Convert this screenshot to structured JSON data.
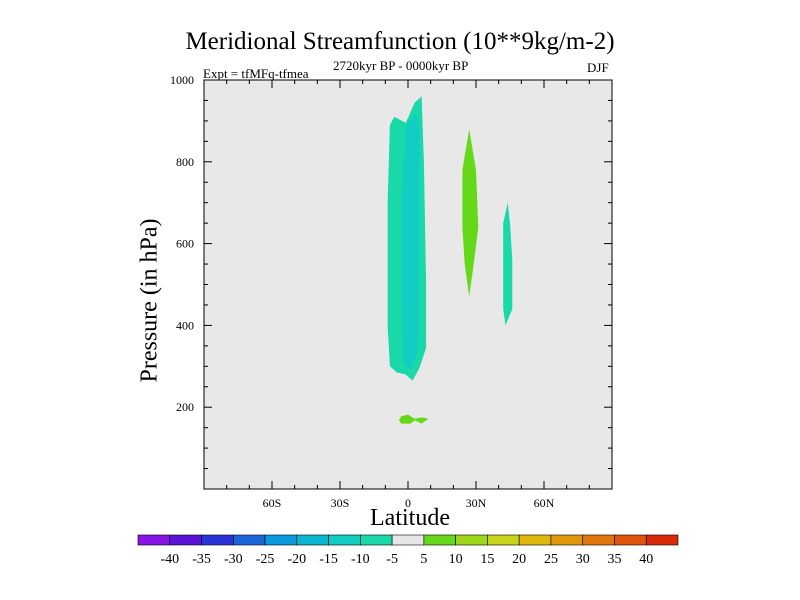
{
  "chart_data": {
    "type": "contour",
    "title": "Meridional Streamfunction (10**9kg/m-2)",
    "subtitle_left": "Expt = tfMFq-tfmea",
    "subtitle_center": "2720kyr BP - 0000kyr BP",
    "subtitle_right": "DJF",
    "xlabel": "Latitude",
    "ylabel": "Pressure (in hPa)",
    "xlim": [
      -90,
      90
    ],
    "ylim": [
      1000,
      0
    ],
    "x_ticks": [
      {
        "value": -60,
        "label": "60S"
      },
      {
        "value": -30,
        "label": "30S"
      },
      {
        "value": 0,
        "label": "0"
      },
      {
        "value": 30,
        "label": "30N"
      },
      {
        "value": 60,
        "label": "60N"
      }
    ],
    "y_ticks": [
      {
        "value": 200,
        "label": "200"
      },
      {
        "value": 400,
        "label": "400"
      },
      {
        "value": 600,
        "label": "600"
      },
      {
        "value": 800,
        "label": "800"
      },
      {
        "value": 1000,
        "label": "1000"
      }
    ],
    "colorbar": {
      "levels": [
        -40,
        -35,
        -30,
        -25,
        -20,
        -15,
        -10,
        -5,
        5,
        10,
        15,
        20,
        25,
        30,
        35,
        40
      ],
      "level_labels": [
        "-40",
        "-35",
        "-30",
        "-25",
        "-20",
        "-15",
        "-10",
        "-5",
        "5",
        "10",
        "15",
        "20",
        "25",
        "30",
        "35",
        "40"
      ],
      "colors": [
        "#8a14e6",
        "#5a14d8",
        "#2b33d6",
        "#1a66d9",
        "#0a99e0",
        "#0ab5d0",
        "#10cfc2",
        "#1ad9a8",
        "#e6e6e6",
        "#66d81a",
        "#9ed61a",
        "#c8d41a",
        "#e0b80a",
        "#e0970a",
        "#e0760a",
        "#e0560a",
        "#d92a0a"
      ]
    },
    "regions": [
      {
        "name": "streamfunction-region-negative-outer",
        "band": "-10 to -5",
        "color": "#1ad9a8",
        "outline": [
          [
            -5,
            285
          ],
          [
            -1,
            280
          ],
          [
            2,
            265
          ],
          [
            5,
            295
          ],
          [
            8,
            345
          ],
          [
            8,
            500
          ],
          [
            7,
            800
          ],
          [
            6,
            960
          ],
          [
            3,
            945
          ],
          [
            -1,
            895
          ],
          [
            -6,
            910
          ],
          [
            -8,
            890
          ],
          [
            -9,
            700
          ],
          [
            -9,
            400
          ],
          [
            -8,
            300
          ]
        ]
      },
      {
        "name": "streamfunction-region-negative-inner",
        "band": "-15 to -10",
        "color": "#10cfc2",
        "outline": [
          [
            -2,
            310
          ],
          [
            1,
            290
          ],
          [
            4,
            330
          ],
          [
            5,
            400
          ],
          [
            5,
            600
          ],
          [
            5,
            900
          ],
          [
            3,
            920
          ],
          [
            -1,
            885
          ],
          [
            -3,
            700
          ],
          [
            -3,
            450
          ]
        ]
      },
      {
        "name": "streamfunction-region-positive-mid",
        "band": "5 to 10",
        "color": "#66d81a",
        "outline": [
          [
            27,
            470
          ],
          [
            29,
            550
          ],
          [
            31,
            640
          ],
          [
            30,
            780
          ],
          [
            27,
            880
          ],
          [
            24,
            780
          ],
          [
            24,
            640
          ],
          [
            25,
            550
          ]
        ]
      },
      {
        "name": "streamfunction-region-negative-right",
        "band": "-10 to -5",
        "color": "#1ad9a8",
        "outline": [
          [
            43,
            400
          ],
          [
            46,
            440
          ],
          [
            46,
            560
          ],
          [
            45,
            650
          ],
          [
            44,
            700
          ],
          [
            42,
            650
          ],
          [
            42,
            500
          ],
          [
            42,
            440
          ]
        ]
      },
      {
        "name": "streamfunction-region-positive-top",
        "band": "5 to 10",
        "color": "#66d81a",
        "outline": [
          [
            -3,
            160
          ],
          [
            1,
            160
          ],
          [
            3,
            168
          ],
          [
            6,
            160
          ],
          [
            9,
            172
          ],
          [
            6,
            175
          ],
          [
            3,
            172
          ],
          [
            0,
            182
          ],
          [
            -3,
            178
          ],
          [
            -4,
            168
          ]
        ]
      }
    ]
  }
}
